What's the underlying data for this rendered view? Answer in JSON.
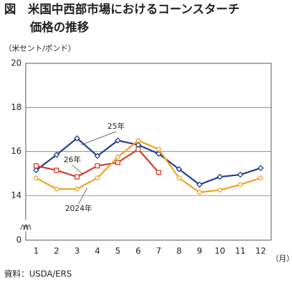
{
  "chart_data": {
    "type": "line",
    "title_lines": [
      "図　米国中西部市場におけるコーンスターチ",
      "価格の推移"
    ],
    "y_label": "（米セント/ポンド）",
    "x_unit": "（月）",
    "source": "資料：USDA/ERS",
    "categories": [
      "1",
      "2",
      "3",
      "4",
      "5",
      "6",
      "7",
      "8",
      "9",
      "10",
      "11",
      "12"
    ],
    "series": [
      {
        "name": "25年",
        "color": "#1f3a93",
        "marker": "diamond",
        "values": [
          15.15,
          15.85,
          16.6,
          15.8,
          16.5,
          16.3,
          15.9,
          15.2,
          14.5,
          14.85,
          14.95,
          15.25
        ]
      },
      {
        "name": "26年",
        "color": "#d93a2b",
        "marker": "square",
        "values": [
          15.35,
          15.15,
          14.85,
          15.35,
          15.5,
          16.1,
          15.05,
          null,
          null,
          null,
          null,
          null
        ]
      },
      {
        "name": "2024年",
        "color": "#f0a020",
        "marker": "circle",
        "values": [
          14.8,
          14.3,
          14.3,
          14.8,
          15.75,
          16.5,
          16.1,
          14.8,
          14.15,
          14.25,
          14.5,
          14.8
        ]
      }
    ],
    "ylim": [
      0,
      20
    ],
    "yticks": [
      0,
      14,
      16,
      18,
      20
    ],
    "axis_break": [
      0,
      14
    ],
    "grid": true
  }
}
